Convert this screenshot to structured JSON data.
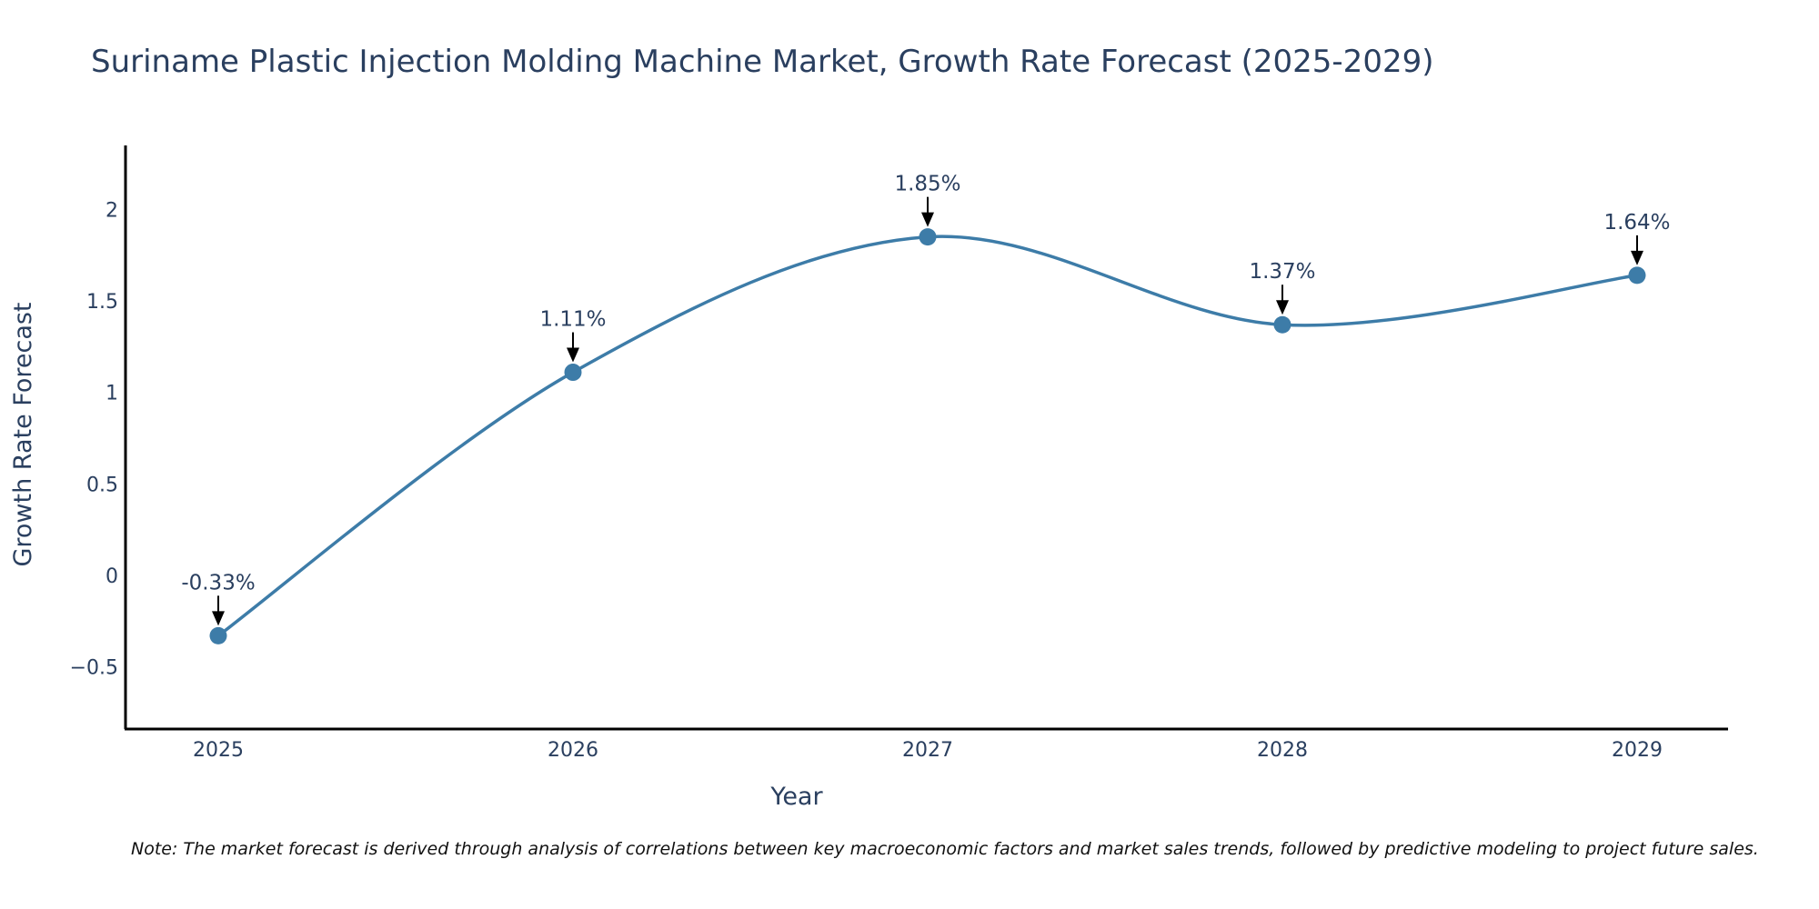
{
  "chart_data": {
    "type": "line",
    "title": "Suriname Plastic Injection Molding Machine Market, Growth Rate Forecast (2025-2029)",
    "xlabel": "Year",
    "ylabel": "Growth Rate Forecast",
    "categories": [
      "2025",
      "2026",
      "2027",
      "2028",
      "2029"
    ],
    "values": [
      -0.33,
      1.11,
      1.85,
      1.37,
      1.64
    ],
    "data_labels": [
      "-0.33%",
      "1.11%",
      "1.85%",
      "1.37%",
      "1.64%"
    ],
    "y_ticks": [
      -0.5,
      0,
      0.5,
      1,
      1.5,
      2
    ],
    "y_tick_labels": [
      "−0.5",
      "0",
      "0.5",
      "1",
      "1.5",
      "2"
    ],
    "ylim": [
      -0.84,
      2.35
    ],
    "grid": false,
    "line_shape": "spline",
    "colors": {
      "line": "#3d7ca8",
      "marker": "#3d7ca8",
      "arrow": "#000000",
      "text": "#2a3f5f",
      "axis": "#000000"
    }
  },
  "note": "Note: The market forecast is derived through analysis of correlations between key macroeconomic factors and market sales trends, followed by predictive modeling to project future sales."
}
